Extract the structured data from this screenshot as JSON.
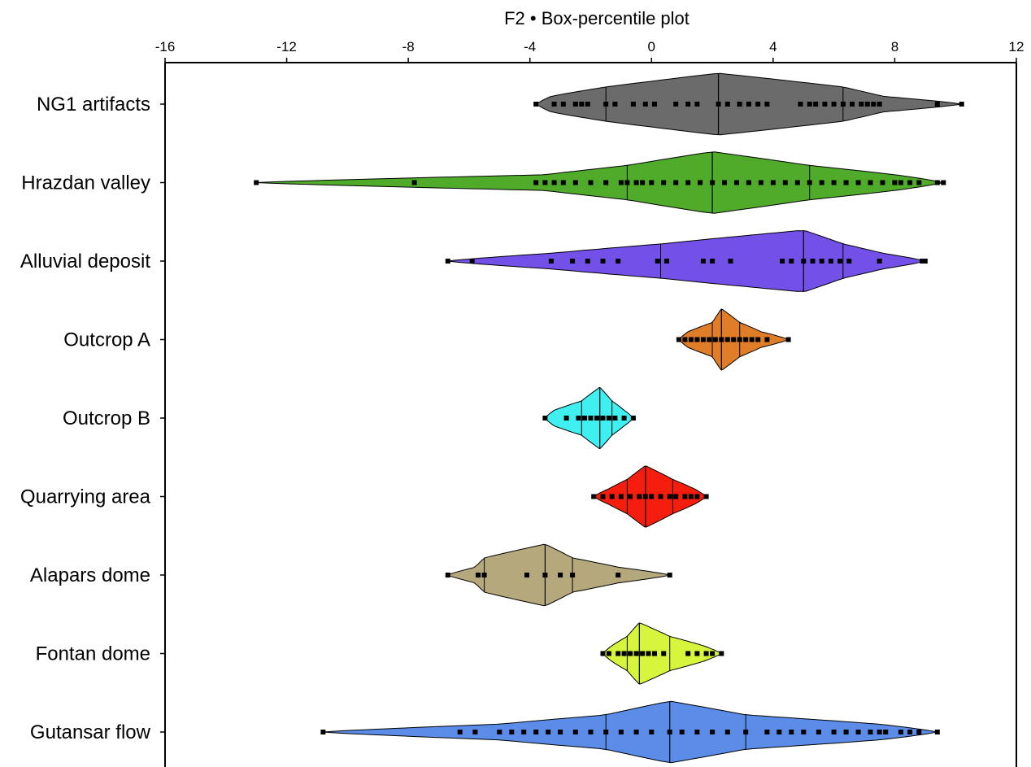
{
  "chart_data": {
    "type": "box-percentile",
    "title": "F2 • Box-percentile plot",
    "xlim": [
      -16,
      12
    ],
    "xticks": [
      -16,
      -12,
      -8,
      -4,
      0,
      4,
      8,
      12
    ],
    "xtick_labels": [
      "-16",
      "-12",
      "-8",
      "-4",
      "0",
      "4",
      "8",
      "12"
    ],
    "xaxis_position": "top",
    "orientation": "horizontal",
    "grid": false,
    "categories": [
      "NG1 artifacts",
      "Hrazdan valley",
      "Alluvial deposit",
      "Outcrop A",
      "Outcrop B",
      "Quarrying area",
      "Alapars dome",
      "Fontan dome",
      "Gutansar flow"
    ],
    "groups": [
      {
        "name": "NG1 artifacts",
        "color": "#6b6b6b",
        "min": -3.8,
        "q10": -3.3,
        "q25": -1.5,
        "median": 2.2,
        "q75": 6.3,
        "q90": 7.6,
        "max": 10.2,
        "points": [
          -3.8,
          -3.2,
          -2.9,
          -2.5,
          -2.3,
          -2.1,
          -1.5,
          -1.2,
          -0.6,
          -0.2,
          0.1,
          0.8,
          1.2,
          1.5,
          2.2,
          2.5,
          2.9,
          3.2,
          3.5,
          3.8,
          4.9,
          5.2,
          5.4,
          5.7,
          6.0,
          6.3,
          6.6,
          6.9,
          7.1,
          7.3,
          7.5,
          9.4,
          10.2
        ]
      },
      {
        "name": "Hrazdan valley",
        "color": "#50ab2a",
        "min": -13.0,
        "q10": -3.5,
        "q25": -0.8,
        "median": 2.0,
        "q75": 5.2,
        "q90": 8.0,
        "max": 9.6,
        "points": [
          -13.0,
          -7.8,
          -3.8,
          -3.5,
          -3.2,
          -2.9,
          -2.5,
          -2.0,
          -1.5,
          -1.0,
          -0.8,
          -0.5,
          -0.3,
          0.0,
          0.4,
          0.8,
          1.2,
          1.6,
          2.0,
          2.4,
          2.8,
          3.2,
          3.6,
          4.0,
          4.4,
          4.8,
          5.2,
          5.6,
          6.0,
          6.4,
          6.8,
          7.2,
          7.6,
          8.0,
          8.2,
          8.5,
          8.8,
          9.4,
          9.6
        ]
      },
      {
        "name": "Alluvial deposit",
        "color": "#7351e8",
        "min": -6.7,
        "q10": -3.3,
        "q25": 0.3,
        "median": 5.0,
        "q75": 6.3,
        "q90": 7.6,
        "max": 9.0,
        "points": [
          -6.7,
          -5.9,
          -3.3,
          -2.6,
          -2.1,
          -1.6,
          -1.1,
          0.2,
          0.5,
          1.7,
          2.0,
          2.6,
          4.3,
          4.6,
          5.0,
          5.3,
          5.6,
          5.9,
          6.2,
          6.5,
          7.5,
          8.9,
          9.0
        ]
      },
      {
        "name": "Outcrop A",
        "color": "#e07d29",
        "min": 0.9,
        "q10": 1.2,
        "q25": 2.0,
        "median": 2.3,
        "q75": 2.9,
        "q90": 3.6,
        "max": 4.5,
        "points": [
          0.9,
          1.1,
          1.3,
          1.5,
          1.7,
          1.9,
          2.1,
          2.3,
          2.5,
          2.7,
          2.9,
          3.1,
          3.3,
          3.5,
          3.8,
          4.5
        ]
      },
      {
        "name": "Outcrop B",
        "color": "#40eff0",
        "min": -3.5,
        "q10": -3.2,
        "q25": -2.3,
        "median": -1.7,
        "q75": -1.3,
        "q90": -0.9,
        "max": -0.6,
        "points": [
          -3.5,
          -2.8,
          -2.4,
          -2.2,
          -2.0,
          -1.8,
          -1.6,
          -1.4,
          -1.2,
          -0.9,
          -0.6
        ]
      },
      {
        "name": "Quarrying area",
        "color": "#f51e0e",
        "min": -1.9,
        "q10": -1.4,
        "q25": -0.8,
        "median": -0.2,
        "q75": 0.7,
        "q90": 1.4,
        "max": 1.8,
        "points": [
          -1.9,
          -1.6,
          -1.3,
          -1.0,
          -0.7,
          -0.4,
          -0.2,
          0.0,
          0.3,
          0.6,
          0.8,
          1.1,
          1.3,
          1.5,
          1.8
        ]
      },
      {
        "name": "Alapars dome",
        "color": "#b4a87c",
        "min": -6.7,
        "q10": -5.8,
        "q25": -5.5,
        "median": -3.5,
        "q75": -2.6,
        "q90": -1.1,
        "max": 0.6,
        "points": [
          -6.7,
          -5.7,
          -5.5,
          -4.1,
          -3.5,
          -3.0,
          -2.6,
          -1.1,
          0.6
        ]
      },
      {
        "name": "Fontan dome",
        "color": "#d6f53c",
        "min": -1.6,
        "q10": -1.3,
        "q25": -0.8,
        "median": -0.4,
        "q75": 0.6,
        "q90": 1.7,
        "max": 2.3,
        "points": [
          -1.6,
          -1.4,
          -1.1,
          -0.9,
          -0.7,
          -0.5,
          -0.3,
          -0.1,
          0.1,
          0.4,
          1.2,
          1.5,
          1.8,
          2.0,
          2.3
        ]
      },
      {
        "name": "Gutansar flow",
        "color": "#5b8de8",
        "min": -10.8,
        "q10": -5.0,
        "q25": -1.5,
        "median": 0.6,
        "q75": 3.1,
        "q90": 7.5,
        "max": 9.4,
        "points": [
          -10.8,
          -6.3,
          -5.8,
          -5.0,
          -4.6,
          -4.2,
          -3.8,
          -3.4,
          -3.0,
          -2.5,
          -2.0,
          -1.5,
          -1.0,
          -0.5,
          0.0,
          0.6,
          1.0,
          1.5,
          2.0,
          2.5,
          3.1,
          3.8,
          4.2,
          4.6,
          5.0,
          5.5,
          6.0,
          6.4,
          6.8,
          7.2,
          7.5,
          7.7,
          8.2,
          8.5,
          8.8,
          9.4
        ]
      }
    ]
  }
}
